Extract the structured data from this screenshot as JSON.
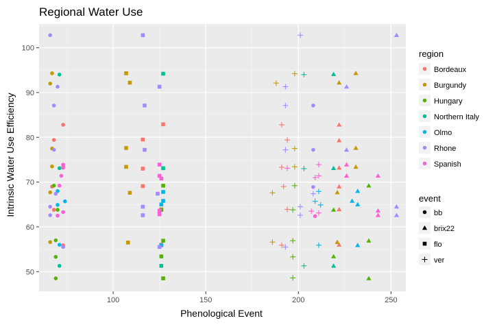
{
  "chart_data": {
    "type": "scatter",
    "title": "Regional Water Use",
    "xlabel": "Phenological Event",
    "ylabel": "Intrinsic Water Use Efficiency",
    "xlim": [
      60,
      258
    ],
    "ylim": [
      45.6,
      105.3
    ],
    "x_ticks": [
      100,
      150,
      200,
      250
    ],
    "y_ticks": [
      50,
      60,
      70,
      80,
      90,
      100
    ],
    "grid": true,
    "background": "#EBEBEB",
    "legend_position": "right",
    "legends": [
      {
        "title": "region",
        "items": [
          {
            "label": "Bordeaux",
            "color": "#F8766D"
          },
          {
            "label": "Burgundy",
            "color": "#C49A00"
          },
          {
            "label": "Hungary",
            "color": "#53B400"
          },
          {
            "label": "Northern Italy",
            "color": "#00C094"
          },
          {
            "label": "Olmo",
            "color": "#00B6EB"
          },
          {
            "label": "Rhone",
            "color": "#A58AFF"
          },
          {
            "label": "Spanish",
            "color": "#FB61D7"
          }
        ]
      },
      {
        "title": "event",
        "items": [
          {
            "label": "bb",
            "shape": "circle"
          },
          {
            "label": "brix22",
            "shape": "triangle"
          },
          {
            "label": "flo",
            "shape": "square"
          },
          {
            "label": "ver",
            "shape": "plus"
          }
        ]
      }
    ],
    "series": [
      {
        "name": "Bordeaux",
        "color": "#F8766D",
        "points": [
          {
            "event": "bb",
            "x": 73,
            "y": 82.8
          },
          {
            "event": "bb",
            "x": 68,
            "y": 79.4
          },
          {
            "event": "bb",
            "x": 73,
            "y": 73.5
          },
          {
            "event": "bb",
            "x": 67,
            "y": 69.0
          },
          {
            "event": "bb",
            "x": 68,
            "y": 63.8
          },
          {
            "event": "bb",
            "x": 73,
            "y": 55.9
          },
          {
            "event": "flo",
            "x": 127,
            "y": 82.9
          },
          {
            "event": "flo",
            "x": 116,
            "y": 79.5
          },
          {
            "event": "flo",
            "x": 116,
            "y": 73.0
          },
          {
            "event": "flo",
            "x": 116,
            "y": 69.1
          },
          {
            "event": "flo",
            "x": 126,
            "y": 63.9
          },
          {
            "event": "flo",
            "x": 126,
            "y": 56.0
          },
          {
            "event": "ver",
            "x": 191,
            "y": 82.8
          },
          {
            "event": "ver",
            "x": 194,
            "y": 79.4
          },
          {
            "event": "ver",
            "x": 191,
            "y": 73.3
          },
          {
            "event": "ver",
            "x": 192,
            "y": 69.0
          },
          {
            "event": "ver",
            "x": 194,
            "y": 63.9
          },
          {
            "event": "ver",
            "x": 191,
            "y": 55.9
          },
          {
            "event": "brix22",
            "x": 222,
            "y": 82.8
          },
          {
            "event": "brix22",
            "x": 222,
            "y": 79.3
          },
          {
            "event": "brix22",
            "x": 222,
            "y": 73.2
          },
          {
            "event": "brix22",
            "x": 222,
            "y": 69.0
          },
          {
            "event": "brix22",
            "x": 222,
            "y": 63.9
          },
          {
            "event": "brix22",
            "x": 222,
            "y": 56.0
          }
        ]
      },
      {
        "name": "Burgundy",
        "color": "#C49A00",
        "points": [
          {
            "event": "bb",
            "x": 67,
            "y": 94.3
          },
          {
            "event": "bb",
            "x": 66,
            "y": 92.0
          },
          {
            "event": "bb",
            "x": 67,
            "y": 77.5
          },
          {
            "event": "bb",
            "x": 67,
            "y": 73.5
          },
          {
            "event": "bb",
            "x": 66,
            "y": 67.7
          },
          {
            "event": "bb",
            "x": 66,
            "y": 56.6
          },
          {
            "event": "flo",
            "x": 107,
            "y": 94.3
          },
          {
            "event": "flo",
            "x": 109,
            "y": 92.2
          },
          {
            "event": "flo",
            "x": 107,
            "y": 77.6
          },
          {
            "event": "flo",
            "x": 107,
            "y": 73.4
          },
          {
            "event": "flo",
            "x": 109,
            "y": 67.6
          },
          {
            "event": "flo",
            "x": 108,
            "y": 56.5
          },
          {
            "event": "ver",
            "x": 198,
            "y": 94.2
          },
          {
            "event": "ver",
            "x": 188,
            "y": 92.1
          },
          {
            "event": "ver",
            "x": 198,
            "y": 77.5
          },
          {
            "event": "ver",
            "x": 198,
            "y": 73.4
          },
          {
            "event": "ver",
            "x": 186,
            "y": 67.6
          },
          {
            "event": "ver",
            "x": 186,
            "y": 56.6
          },
          {
            "event": "brix22",
            "x": 231,
            "y": 94.3
          },
          {
            "event": "brix22",
            "x": 222,
            "y": 92.2
          },
          {
            "event": "brix22",
            "x": 231,
            "y": 77.6
          },
          {
            "event": "brix22",
            "x": 231,
            "y": 73.4
          },
          {
            "event": "brix22",
            "x": 221,
            "y": 67.7
          },
          {
            "event": "brix22",
            "x": 221,
            "y": 56.6
          }
        ]
      },
      {
        "name": "Hungary",
        "color": "#53B400",
        "points": [
          {
            "event": "bb",
            "x": 68,
            "y": 69.2
          },
          {
            "event": "bb",
            "x": 70,
            "y": 63.8
          },
          {
            "event": "bb",
            "x": 69,
            "y": 57.0
          },
          {
            "event": "bb",
            "x": 69,
            "y": 53.3
          },
          {
            "event": "bb",
            "x": 69,
            "y": 48.5
          },
          {
            "event": "flo",
            "x": 127,
            "y": 69.2
          },
          {
            "event": "flo",
            "x": 126,
            "y": 63.8
          },
          {
            "event": "flo",
            "x": 127,
            "y": 56.9
          },
          {
            "event": "flo",
            "x": 126,
            "y": 53.4
          },
          {
            "event": "flo",
            "x": 127,
            "y": 48.5
          },
          {
            "event": "ver",
            "x": 198,
            "y": 69.2
          },
          {
            "event": "ver",
            "x": 197,
            "y": 63.8
          },
          {
            "event": "ver",
            "x": 197,
            "y": 56.9
          },
          {
            "event": "ver",
            "x": 197,
            "y": 53.3
          },
          {
            "event": "ver",
            "x": 197,
            "y": 48.6
          },
          {
            "event": "brix22",
            "x": 238,
            "y": 69.2
          },
          {
            "event": "brix22",
            "x": 219,
            "y": 63.8
          },
          {
            "event": "brix22",
            "x": 238,
            "y": 56.9
          },
          {
            "event": "brix22",
            "x": 219,
            "y": 53.4
          },
          {
            "event": "brix22",
            "x": 238,
            "y": 48.5
          }
        ]
      },
      {
        "name": "Northern Italy",
        "color": "#00C094",
        "points": [
          {
            "event": "bb",
            "x": 71,
            "y": 94.0
          },
          {
            "event": "bb",
            "x": 71,
            "y": 73.1
          },
          {
            "event": "bb",
            "x": 71,
            "y": 51.3
          },
          {
            "event": "flo",
            "x": 127,
            "y": 94.2
          },
          {
            "event": "flo",
            "x": 127,
            "y": 73.1
          },
          {
            "event": "flo",
            "x": 126,
            "y": 51.3
          },
          {
            "event": "ver",
            "x": 203,
            "y": 94.0
          },
          {
            "event": "ver",
            "x": 203,
            "y": 73.0
          },
          {
            "event": "ver",
            "x": 203,
            "y": 51.3
          },
          {
            "event": "brix22",
            "x": 219,
            "y": 94.1
          },
          {
            "event": "brix22",
            "x": 219,
            "y": 73.1
          },
          {
            "event": "brix22",
            "x": 219,
            "y": 51.3
          }
        ]
      },
      {
        "name": "Olmo",
        "color": "#00B6EB",
        "points": [
          {
            "event": "bb",
            "x": 70,
            "y": 68.0
          },
          {
            "event": "bb",
            "x": 74,
            "y": 65.7
          },
          {
            "event": "bb",
            "x": 70,
            "y": 64.9
          },
          {
            "event": "bb",
            "x": 71,
            "y": 56.0
          },
          {
            "event": "flo",
            "x": 127,
            "y": 67.8
          },
          {
            "event": "flo",
            "x": 127,
            "y": 65.8
          },
          {
            "event": "flo",
            "x": 126,
            "y": 65.0
          },
          {
            "event": "flo",
            "x": 126,
            "y": 55.9
          },
          {
            "event": "ver",
            "x": 211,
            "y": 67.9
          },
          {
            "event": "ver",
            "x": 209,
            "y": 65.7
          },
          {
            "event": "ver",
            "x": 212,
            "y": 64.9
          },
          {
            "event": "ver",
            "x": 211,
            "y": 55.9
          },
          {
            "event": "brix22",
            "x": 232,
            "y": 68.0
          },
          {
            "event": "brix22",
            "x": 229,
            "y": 65.8
          },
          {
            "event": "brix22",
            "x": 232,
            "y": 65.0
          },
          {
            "event": "brix22",
            "x": 232,
            "y": 55.9
          }
        ]
      },
      {
        "name": "Rhone",
        "color": "#A58AFF",
        "points": [
          {
            "event": "bb",
            "x": 66,
            "y": 102.8
          },
          {
            "event": "bb",
            "x": 70,
            "y": 91.3
          },
          {
            "event": "bb",
            "x": 68,
            "y": 87.1
          },
          {
            "event": "bb",
            "x": 68,
            "y": 77.2
          },
          {
            "event": "bb",
            "x": 69,
            "y": 67.4
          },
          {
            "event": "bb",
            "x": 66,
            "y": 64.5
          },
          {
            "event": "bb",
            "x": 66,
            "y": 62.6
          },
          {
            "event": "bb",
            "x": 73,
            "y": 55.5
          },
          {
            "event": "flo",
            "x": 116,
            "y": 102.8
          },
          {
            "event": "flo",
            "x": 125,
            "y": 91.3
          },
          {
            "event": "flo",
            "x": 117,
            "y": 87.1
          },
          {
            "event": "flo",
            "x": 117,
            "y": 77.2
          },
          {
            "event": "flo",
            "x": 124,
            "y": 67.4
          },
          {
            "event": "flo",
            "x": 116,
            "y": 64.5
          },
          {
            "event": "flo",
            "x": 116,
            "y": 62.6
          },
          {
            "event": "flo",
            "x": 125,
            "y": 55.5
          },
          {
            "event": "ver",
            "x": 201,
            "y": 102.8
          },
          {
            "event": "ver",
            "x": 193,
            "y": 91.3
          },
          {
            "event": "ver",
            "x": 193,
            "y": 87.1
          },
          {
            "event": "ver",
            "x": 193,
            "y": 77.2
          },
          {
            "event": "ver",
            "x": 208,
            "y": 67.4
          },
          {
            "event": "ver",
            "x": 201,
            "y": 64.5
          },
          {
            "event": "ver",
            "x": 201,
            "y": 62.6
          },
          {
            "event": "ver",
            "x": 193,
            "y": 55.5
          },
          {
            "event": "bb",
            "x": 208,
            "y": 87.1
          },
          {
            "event": "bb",
            "x": 208,
            "y": 77.2
          },
          {
            "event": "bb",
            "x": 208,
            "y": 68.9
          },
          {
            "event": "brix22",
            "x": 253,
            "y": 102.8
          },
          {
            "event": "brix22",
            "x": 226,
            "y": 91.3
          },
          {
            "event": "brix22",
            "x": 226,
            "y": 77.2
          },
          {
            "event": "brix22",
            "x": 253,
            "y": 64.5
          },
          {
            "event": "brix22",
            "x": 253,
            "y": 62.6
          }
        ]
      },
      {
        "name": "Spanish",
        "color": "#FB61D7",
        "points": [
          {
            "event": "bb",
            "x": 73,
            "y": 73.9
          },
          {
            "event": "bb",
            "x": 72,
            "y": 71.4
          },
          {
            "event": "bb",
            "x": 73,
            "y": 73.2
          },
          {
            "event": "bb",
            "x": 71,
            "y": 69.2
          },
          {
            "event": "bb",
            "x": 73,
            "y": 63.3
          },
          {
            "event": "bb",
            "x": 70,
            "y": 62.5
          },
          {
            "event": "flo",
            "x": 125,
            "y": 73.9
          },
          {
            "event": "flo",
            "x": 125,
            "y": 71.4
          },
          {
            "event": "flo",
            "x": 126,
            "y": 70.8
          },
          {
            "event": "flo",
            "x": 125,
            "y": 63.6
          },
          {
            "event": "flo",
            "x": 125,
            "y": 62.8
          },
          {
            "event": "ver",
            "x": 194,
            "y": 73.1
          },
          {
            "event": "ver",
            "x": 211,
            "y": 73.9
          },
          {
            "event": "ver",
            "x": 211,
            "y": 71.4
          },
          {
            "event": "ver",
            "x": 209,
            "y": 71.0
          },
          {
            "event": "ver",
            "x": 207,
            "y": 63.5
          },
          {
            "event": "ver",
            "x": 211,
            "y": 63.1
          },
          {
            "event": "bb",
            "x": 209,
            "y": 62.4
          },
          {
            "event": "brix22",
            "x": 226,
            "y": 73.9
          },
          {
            "event": "brix22",
            "x": 243,
            "y": 71.4
          },
          {
            "event": "brix22",
            "x": 226,
            "y": 71.4
          },
          {
            "event": "brix22",
            "x": 243,
            "y": 63.6
          },
          {
            "event": "brix22",
            "x": 243,
            "y": 62.6
          }
        ]
      }
    ]
  }
}
